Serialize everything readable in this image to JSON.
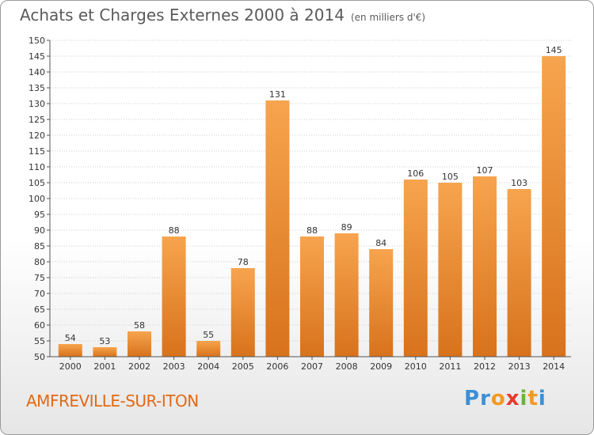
{
  "title": "Achats et Charges Externes 2000 à 2014",
  "title_unit": "(en milliers d'€)",
  "commune": "AMFREVILLE-SUR-ITON",
  "logo": {
    "letters": [
      {
        "ch": "P",
        "color": "#3a8fd6"
      },
      {
        "ch": "r",
        "color": "#3a8fd6"
      },
      {
        "ch": "o",
        "color": "#f29a1f"
      },
      {
        "ch": "x",
        "color": "#e8392b"
      },
      {
        "ch": "i",
        "color": "#6cb33f"
      },
      {
        "ch": "t",
        "color": "#f29a1f"
      },
      {
        "ch": "i",
        "color": "#3a8fd6"
      }
    ]
  },
  "colors": {
    "bar_light": "#f7a44e",
    "bar_dark": "#d8721c",
    "grid": "#cccccc",
    "axis": "#555555"
  },
  "chart_data": {
    "type": "bar",
    "title": "Achats et Charges Externes 2000 à 2014",
    "xlabel": "",
    "ylabel": "",
    "categories": [
      "2000",
      "2001",
      "2002",
      "2003",
      "2004",
      "2005",
      "2006",
      "2007",
      "2008",
      "2009",
      "2010",
      "2011",
      "2012",
      "2013",
      "2014"
    ],
    "values": [
      54,
      53,
      58,
      88,
      55,
      78,
      131,
      88,
      89,
      84,
      106,
      105,
      107,
      103,
      145
    ],
    "ylim": [
      50,
      150
    ],
    "yticks": [
      50,
      55,
      60,
      65,
      70,
      75,
      80,
      85,
      90,
      95,
      100,
      105,
      110,
      115,
      120,
      125,
      130,
      135,
      140,
      145,
      150
    ],
    "grid": true,
    "legend": "none"
  }
}
